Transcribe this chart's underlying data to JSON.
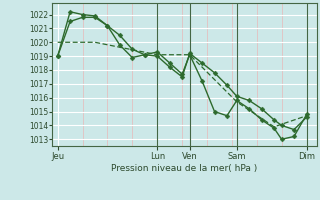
{
  "background_color": "#cce8e8",
  "plot_bg_color": "#cce8e8",
  "grid_major_color": "#ffffff",
  "grid_minor_color": "#e8b8b8",
  "line_color": "#2d6a2d",
  "ylabel_text": "Pression niveau de la mer( hPa )",
  "ylim": [
    1012.5,
    1022.8
  ],
  "yticks": [
    1013,
    1014,
    1015,
    1016,
    1017,
    1018,
    1019,
    1020,
    1021,
    1022
  ],
  "xtick_labels": [
    "Jeu",
    "Lun",
    "Ven",
    "Sam",
    "Dim"
  ],
  "xtick_positions": [
    0.0,
    0.385,
    0.51,
    0.692,
    0.962
  ],
  "series": [
    {
      "x": [
        0.0,
        0.048,
        0.096,
        0.144,
        0.192,
        0.24,
        0.288,
        0.336,
        0.385,
        0.433,
        0.481,
        0.51,
        0.558,
        0.606,
        0.654,
        0.692,
        0.74,
        0.788,
        0.836,
        0.865,
        0.913,
        0.962
      ],
      "y": [
        1019.0,
        1021.5,
        1021.8,
        1021.8,
        1021.2,
        1020.5,
        1019.5,
        1019.1,
        1019.0,
        1018.2,
        1017.5,
        1019.2,
        1018.5,
        1017.8,
        1016.9,
        1016.1,
        1015.8,
        1015.2,
        1014.4,
        1014.0,
        1013.7,
        1014.6
      ],
      "marker": "D",
      "linewidth": 1.0,
      "markersize": 2.5
    },
    {
      "x": [
        0.0,
        0.048,
        0.096,
        0.144,
        0.192,
        0.24,
        0.288,
        0.336,
        0.385,
        0.433,
        0.481,
        0.51,
        0.558,
        0.606,
        0.654,
        0.692,
        0.74,
        0.788,
        0.836,
        0.865,
        0.913,
        0.962
      ],
      "y": [
        1019.0,
        1022.2,
        1022.0,
        1021.9,
        1021.2,
        1019.8,
        1018.9,
        1019.1,
        1019.3,
        1018.5,
        1017.7,
        1019.1,
        1017.2,
        1015.0,
        1014.7,
        1015.8,
        1015.2,
        1014.4,
        1013.8,
        1013.0,
        1013.2,
        1014.8
      ],
      "marker": "D",
      "linewidth": 1.0,
      "markersize": 2.5
    },
    {
      "x": [
        0.0,
        0.144,
        0.385,
        0.51,
        0.692,
        0.836,
        0.962
      ],
      "y": [
        1020.0,
        1020.0,
        1019.1,
        1019.1,
        1015.7,
        1013.9,
        1014.7
      ],
      "marker": null,
      "linewidth": 0.9,
      "markersize": 0,
      "dashed": true
    }
  ],
  "vline_positions": [
    0.385,
    0.51,
    0.692,
    0.962
  ],
  "vline_color": "#446644",
  "spine_color": "#446644"
}
